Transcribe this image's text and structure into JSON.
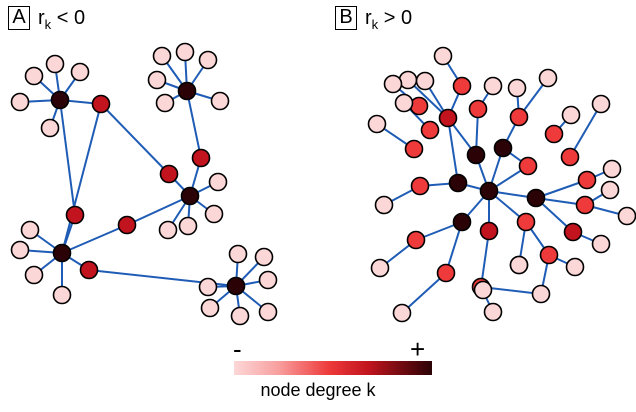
{
  "panels": [
    {
      "tag": "A",
      "caption_main": "r",
      "caption_sub": "k",
      "caption_rest": " < 0"
    },
    {
      "tag": "B",
      "caption_main": "r",
      "caption_sub": "k",
      "caption_rest": " > 0"
    }
  ],
  "legend": {
    "minus": "-",
    "plus": "+",
    "caption": "node degree k",
    "colors": [
      "#fcd7d7",
      "#f8a0a0",
      "#ee3a3a",
      "#c1141e",
      "#6b0a10",
      "#2b0306"
    ]
  },
  "style": {
    "edge_color": "#1f5cb5",
    "node_stroke": "#000000"
  }
}
